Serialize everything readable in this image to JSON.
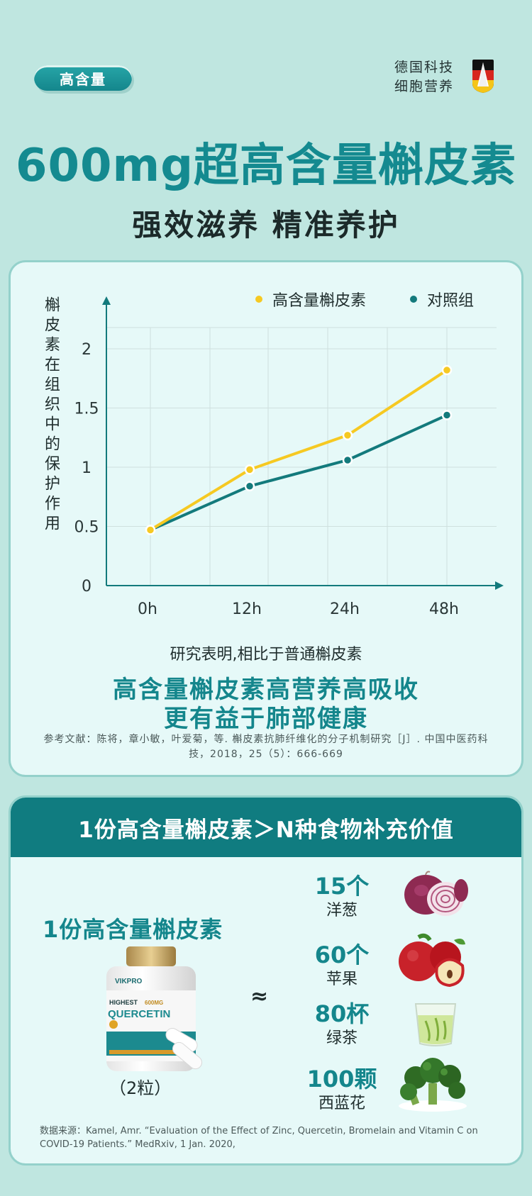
{
  "header": {
    "badge": "高含量",
    "brand_line1": "德国科技",
    "brand_line2": "细胞营养",
    "title": "600mg超高含量槲皮素",
    "subtitle": "强效滋养 精准养护"
  },
  "colors": {
    "teal": "#14868c",
    "gold": "#f6c922",
    "series_teal": "#137a7c",
    "background": "#bfe6e0",
    "card": "#e6f9f8"
  },
  "chart_data": {
    "type": "line",
    "title": "",
    "xlabel": "",
    "ylabel": "槲皮素在组织中的保护作用",
    "x": [
      "0h",
      "12h",
      "24h",
      "48h"
    ],
    "y_ticks": [
      "0",
      "0.5",
      "1",
      "1.5",
      "2"
    ],
    "ylim": [
      0,
      2.4
    ],
    "grid": true,
    "legend_position": "top",
    "series": [
      {
        "name": "高含量槲皮素",
        "color": "#f6c922",
        "values": [
          0.47,
          0.98,
          1.27,
          1.82
        ]
      },
      {
        "name": "对照组",
        "color": "#137a7c",
        "values": [
          0.47,
          0.84,
          1.06,
          1.44
        ]
      }
    ]
  },
  "chart_notes": {
    "intro": "研究表明,相比于普通槲皮素",
    "highlight_line1": "高含量槲皮素高营养高吸收",
    "highlight_line2": "更有益于肺部健康",
    "reference": "参考文献：陈将，章小敏，叶爱菊，等. 槲皮素抗肺纤维化的分子机制研究［J］. 中国中医药科技，2018，25（5）：666-669"
  },
  "comparison": {
    "heading": "1份高含量槲皮素＞N种食物补充价值",
    "left_title": "1份高含量槲皮素",
    "quantity": "（2粒）",
    "approx": "≈",
    "bottle_brand": "VIKPRO",
    "bottle_line1": "HIGHEST",
    "bottle_dose": "600MG",
    "bottle_name": "QUERCETIN",
    "foods": [
      {
        "amount": "15个",
        "name": "洋葱",
        "icon": "onion-icon"
      },
      {
        "amount": "60个",
        "name": "苹果",
        "icon": "apple-icon"
      },
      {
        "amount": "80杯",
        "name": "绿茶",
        "icon": "green-tea-icon"
      },
      {
        "amount": "100颗",
        "name": "西蓝花",
        "icon": "broccoli-icon"
      }
    ],
    "source": "数据来源：Kamel, Amr. “Evaluation of the Effect of Zinc, Quercetin, Bromelain and Vitamin C on COVID-19 Patients.” MedRxiv, 1 Jan. 2020,"
  }
}
